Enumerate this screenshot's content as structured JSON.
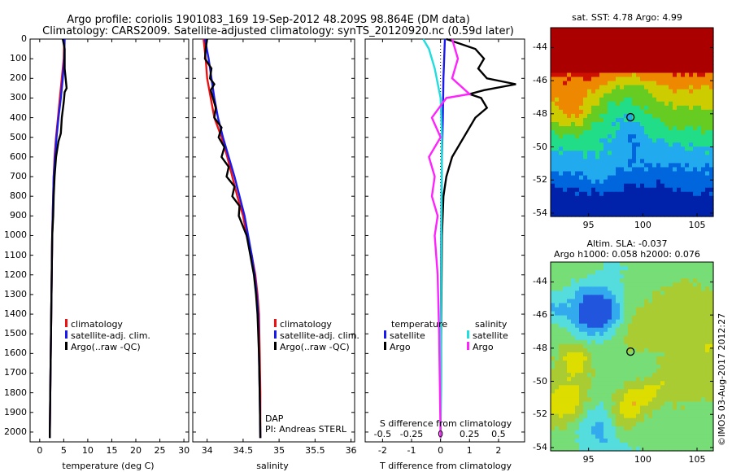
{
  "header": {
    "line1": "Argo profile: coriolis 1901083_169 19-Sep-2012 48.209S 98.864E (DM data)",
    "line2": "Climatology: CARS2009. Satellite-adjusted climatology: synTS_20120920.nc (0.59d later)"
  },
  "colors": {
    "climatology": "#ee1111",
    "satellite": "#1a1aee",
    "argo": "#000000",
    "salinity_diff": "#ff22ff",
    "salinity_sat": "#22dddd"
  },
  "depth_ticks": [
    "0",
    "100",
    "200",
    "300",
    "400",
    "500",
    "600",
    "700",
    "800",
    "900",
    "1000",
    "1100",
    "1200",
    "1300",
    "1400",
    "1500",
    "1600",
    "1700",
    "1800",
    "1900",
    "2000"
  ],
  "chart_data": [
    {
      "type": "line",
      "name": "temperature-profile",
      "xlabel": "temperature (deg C)",
      "ylabel": "",
      "xlim": [
        -2,
        31
      ],
      "ylim": [
        2050,
        0
      ],
      "xticks": [
        "0",
        "5",
        "10",
        "15",
        "20",
        "25",
        "30"
      ],
      "legend": [
        "climatology",
        "satellite-adj. clim.",
        "Argo(..raw -QC)"
      ],
      "series": [
        {
          "name": "climatology",
          "points": [
            [
              5.1,
              0
            ],
            [
              5.0,
              100
            ],
            [
              4.6,
              200
            ],
            [
              4.2,
              300
            ],
            [
              3.8,
              400
            ],
            [
              3.4,
              500
            ],
            [
              3.1,
              600
            ],
            [
              2.9,
              700
            ],
            [
              2.8,
              800
            ],
            [
              2.7,
              900
            ],
            [
              2.6,
              1000
            ],
            [
              2.5,
              1200
            ],
            [
              2.4,
              1400
            ],
            [
              2.3,
              1600
            ],
            [
              2.2,
              1800
            ],
            [
              2.1,
              2030
            ]
          ]
        },
        {
          "name": "satellite-adj. clim.",
          "points": [
            [
              5.2,
              0
            ],
            [
              5.1,
              100
            ],
            [
              4.8,
              200
            ],
            [
              4.4,
              300
            ],
            [
              3.9,
              400
            ],
            [
              3.5,
              500
            ],
            [
              3.2,
              600
            ],
            [
              2.9,
              700
            ],
            [
              2.8,
              800
            ],
            [
              2.7,
              900
            ],
            [
              2.6,
              1000
            ],
            [
              2.5,
              1200
            ],
            [
              2.4,
              1400
            ],
            [
              2.3,
              1600
            ],
            [
              2.2,
              1800
            ],
            [
              2.1,
              2030
            ]
          ]
        },
        {
          "name": "Argo(..raw -QC)",
          "points": [
            [
              4.8,
              0
            ],
            [
              5.2,
              50
            ],
            [
              5.2,
              150
            ],
            [
              5.6,
              250
            ],
            [
              5.2,
              270
            ],
            [
              5.0,
              320
            ],
            [
              4.6,
              400
            ],
            [
              4.4,
              480
            ],
            [
              3.9,
              520
            ],
            [
              3.4,
              600
            ],
            [
              3.1,
              700
            ],
            [
              2.9,
              800
            ],
            [
              2.8,
              900
            ],
            [
              2.6,
              1000
            ],
            [
              2.5,
              1200
            ],
            [
              2.4,
              1400
            ],
            [
              2.3,
              1600
            ],
            [
              2.2,
              1800
            ],
            [
              2.1,
              2030
            ]
          ]
        }
      ]
    },
    {
      "type": "line",
      "name": "salinity-profile",
      "xlabel": "salinity",
      "ylabel": "",
      "xlim": [
        33.8,
        36.05
      ],
      "ylim": [
        2050,
        0
      ],
      "xticks": [
        "34",
        "34.5",
        "35",
        "35.5",
        "36"
      ],
      "legend": [
        "climatology",
        "satellite-adj. clim.",
        "Argo(..raw -QC)"
      ],
      "annotation": [
        "DAP",
        "PI: Andreas STERL"
      ],
      "series": [
        {
          "name": "climatology",
          "points": [
            [
              33.95,
              0
            ],
            [
              33.98,
              100
            ],
            [
              34.0,
              200
            ],
            [
              34.05,
              300
            ],
            [
              34.1,
              400
            ],
            [
              34.2,
              500
            ],
            [
              34.28,
              600
            ],
            [
              34.35,
              700
            ],
            [
              34.42,
              800
            ],
            [
              34.5,
              900
            ],
            [
              34.55,
              1000
            ],
            [
              34.62,
              1100
            ],
            [
              34.67,
              1200
            ],
            [
              34.7,
              1300
            ],
            [
              34.72,
              1400
            ],
            [
              34.73,
              1600
            ],
            [
              34.74,
              1800
            ],
            [
              34.74,
              2030
            ]
          ]
        },
        {
          "name": "satellite-adj. clim.",
          "points": [
            [
              33.97,
              0
            ],
            [
              34.02,
              100
            ],
            [
              34.06,
              200
            ],
            [
              34.1,
              300
            ],
            [
              34.15,
              400
            ],
            [
              34.22,
              500
            ],
            [
              34.3,
              600
            ],
            [
              34.38,
              700
            ],
            [
              34.45,
              800
            ],
            [
              34.52,
              900
            ],
            [
              34.57,
              1000
            ],
            [
              34.62,
              1100
            ],
            [
              34.66,
              1200
            ],
            [
              34.69,
              1300
            ],
            [
              34.71,
              1400
            ],
            [
              34.72,
              1600
            ],
            [
              34.73,
              1800
            ],
            [
              34.74,
              2030
            ]
          ]
        },
        {
          "name": "Argo(..raw -QC)",
          "points": [
            [
              34.0,
              0
            ],
            [
              33.98,
              50
            ],
            [
              33.97,
              100
            ],
            [
              34.06,
              150
            ],
            [
              34.04,
              200
            ],
            [
              34.1,
              230
            ],
            [
              34.05,
              260
            ],
            [
              34.08,
              300
            ],
            [
              34.12,
              350
            ],
            [
              34.1,
              400
            ],
            [
              34.2,
              450
            ],
            [
              34.16,
              500
            ],
            [
              34.24,
              550
            ],
            [
              34.2,
              600
            ],
            [
              34.3,
              650
            ],
            [
              34.27,
              700
            ],
            [
              34.38,
              750
            ],
            [
              34.35,
              800
            ],
            [
              34.45,
              850
            ],
            [
              34.44,
              900
            ],
            [
              34.55,
              1000
            ],
            [
              34.6,
              1100
            ],
            [
              34.65,
              1200
            ],
            [
              34.68,
              1300
            ],
            [
              34.7,
              1400
            ],
            [
              34.72,
              1600
            ],
            [
              34.73,
              1800
            ],
            [
              34.74,
              2030
            ]
          ]
        }
      ]
    },
    {
      "type": "line",
      "name": "difference-profile",
      "xlabel": "T difference from climatology",
      "xlabel2": "S difference from climatology",
      "xlim": [
        -2.6,
        2.9
      ],
      "ylim": [
        2050,
        0
      ],
      "xticks": [
        "-2",
        "-1",
        "0",
        "1",
        "2"
      ],
      "xticks_top": [
        "-0.5",
        "-0.25",
        "0",
        "0.25",
        "0.5"
      ],
      "legend_headers": [
        "temperature",
        "salinity"
      ],
      "legend": [
        "satellite",
        "Argo",
        "satellite",
        "Argo"
      ],
      "series": [
        {
          "name": "temperature satellite",
          "points": [
            [
              0.15,
              0
            ],
            [
              0.1,
              200
            ],
            [
              0.08,
              400
            ],
            [
              0.05,
              600
            ],
            [
              0.02,
              1000
            ],
            [
              0.0,
              2030
            ]
          ]
        },
        {
          "name": "temperature Argo",
          "points": [
            [
              0.2,
              0
            ],
            [
              1.2,
              50
            ],
            [
              1.5,
              100
            ],
            [
              1.3,
              150
            ],
            [
              1.6,
              200
            ],
            [
              2.6,
              230
            ],
            [
              1.5,
              260
            ],
            [
              1.0,
              280
            ],
            [
              1.4,
              300
            ],
            [
              1.6,
              350
            ],
            [
              1.2,
              400
            ],
            [
              0.8,
              500
            ],
            [
              0.4,
              600
            ],
            [
              0.2,
              700
            ],
            [
              0.1,
              800
            ],
            [
              0.05,
              1000
            ],
            [
              0.02,
              1500
            ],
            [
              0.0,
              2030
            ]
          ]
        },
        {
          "name": "salinity satellite",
          "points": [
            [
              -0.6,
              0
            ],
            [
              -0.4,
              50
            ],
            [
              -0.2,
              150
            ],
            [
              0.0,
              300
            ],
            [
              0.05,
              500
            ],
            [
              0.03,
              1000
            ],
            [
              0.0,
              2030
            ]
          ]
        },
        {
          "name": "salinity Argo",
          "points": [
            [
              0.4,
              0
            ],
            [
              0.6,
              100
            ],
            [
              0.4,
              200
            ],
            [
              1.0,
              280
            ],
            [
              0.2,
              300
            ],
            [
              -0.3,
              400
            ],
            [
              0.0,
              500
            ],
            [
              -0.4,
              600
            ],
            [
              -0.2,
              700
            ],
            [
              -0.3,
              800
            ],
            [
              -0.1,
              900
            ],
            [
              -0.2,
              1000
            ],
            [
              -0.1,
              1200
            ],
            [
              -0.05,
              1500
            ],
            [
              0.0,
              2030
            ]
          ]
        }
      ]
    },
    {
      "type": "heatmap",
      "name": "sst-map",
      "title": "sat. SST: 4.78 Argo: 4.99",
      "xlim": [
        91.5,
        106.5
      ],
      "ylim": [
        -54.2,
        -42.8
      ],
      "xticks": [
        "95",
        "100",
        "105"
      ],
      "yticks": [
        "-44",
        "-46",
        "-48",
        "-50",
        "-52",
        "-54"
      ],
      "marker": [
        98.864,
        -48.209
      ]
    },
    {
      "type": "heatmap",
      "name": "sla-map",
      "title": "Altim. SLA: -0.037",
      "subtitle": "Argo h1000: 0.058 h2000: 0.076",
      "xlim": [
        91.5,
        106.5
      ],
      "ylim": [
        -54.2,
        -42.8
      ],
      "xticks": [
        "95",
        "100",
        "105"
      ],
      "yticks": [
        "-44",
        "-46",
        "-48",
        "-50",
        "-52",
        "-54"
      ],
      "marker": [
        98.864,
        -48.209
      ]
    }
  ],
  "footer_vertical": "©IMOS 03-Aug-2017 2012:27"
}
